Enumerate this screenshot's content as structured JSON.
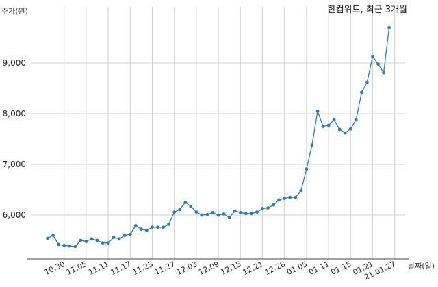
{
  "chart_data": {
    "type": "line",
    "title": "한컴위드, 최근 3개월",
    "ylabel": "주가(원)",
    "xlabel": "날짜(일)",
    "ylim": [
      5150,
      9900
    ],
    "yticks": [
      6000,
      7000,
      8000,
      9000
    ],
    "ytick_labels": [
      "6,000",
      "7,000",
      "8,000",
      "9,000"
    ],
    "xtick_labels": [
      "10.30",
      "11.05",
      "11.11",
      "11.17",
      "11.23",
      "11.27",
      "12.03",
      "12.09",
      "12.15",
      "12.21",
      "12.28",
      "01.05",
      "01.11",
      "01.15",
      "01.21",
      "21.01.27"
    ],
    "xtick_index": [
      3,
      7,
      11,
      15,
      19,
      23,
      27,
      31,
      35,
      39,
      43,
      47,
      51,
      55,
      59,
      63
    ],
    "grid": true,
    "series": [
      {
        "values": [
          5540,
          5600,
          5420,
          5400,
          5390,
          5380,
          5500,
          5480,
          5530,
          5500,
          5450,
          5450,
          5560,
          5530,
          5600,
          5620,
          5790,
          5720,
          5700,
          5760,
          5760,
          5760,
          5820,
          6060,
          6110,
          6250,
          6170,
          6060,
          6000,
          6010,
          6050,
          6000,
          6020,
          5950,
          6080,
          6050,
          6030,
          6030,
          6060,
          6130,
          6140,
          6200,
          6300,
          6330,
          6350,
          6350,
          6480,
          6910,
          7380,
          8050,
          7750,
          7770,
          7880,
          7690,
          7620,
          7700,
          7880,
          8420,
          8620,
          9130,
          8980,
          8810,
          9700
        ]
      }
    ]
  }
}
